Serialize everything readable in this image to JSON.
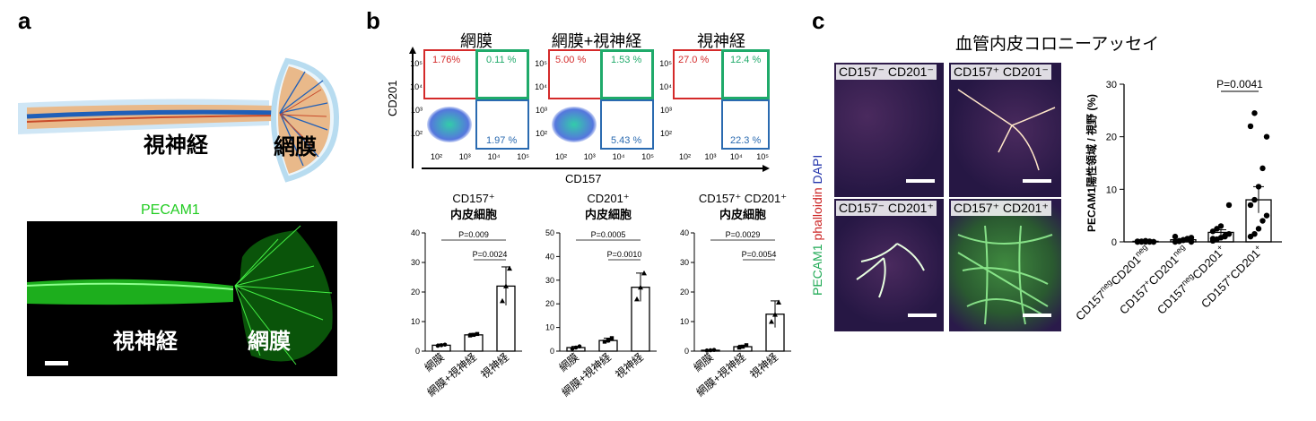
{
  "panels": {
    "a": {
      "letter": "a",
      "schematic_labels": {
        "optic_nerve": "視神経",
        "retina": "網膜"
      },
      "fluor_title": "PECAM1",
      "fluor_labels": {
        "optic_nerve": "視神経",
        "retina": "網膜"
      },
      "colors": {
        "vessel": "#1f5fb8",
        "tissue": "#e9b98a",
        "pecam": "#22cc22"
      }
    },
    "b": {
      "letter": "b",
      "y_axis_label": "CD201",
      "x_axis_label": "CD157",
      "flow": [
        {
          "title": "網膜",
          "q_ul": "1.76%",
          "q_ur": "0.11 %",
          "q_lr": "1.97 %"
        },
        {
          "title": "網膜+視神経",
          "q_ul": "5.00 %",
          "q_ur": "1.53 %",
          "q_lr": "5.43 %"
        },
        {
          "title": "視神経",
          "q_ul": "27.0 %",
          "q_ur": "12.4 %",
          "q_lr": "22.3 %"
        }
      ],
      "flow_ticks_y": [
        "10⁵",
        "10⁴",
        "10³",
        "10²"
      ],
      "flow_ticks_x": [
        "10²",
        "10³",
        "10⁴",
        "10⁵"
      ],
      "gate_colors": {
        "ul": "#d42a2a",
        "ur": "#1faa6a",
        "lr": "#2a6ab0"
      }
    },
    "c": {
      "letter": "c",
      "title": "血管内皮コロニーアッセイ",
      "micro_labels": [
        "CD157⁻ CD201⁻",
        "CD157⁺ CD201⁻",
        "CD157⁻ CD201⁺",
        "CD157⁺ CD201⁺"
      ],
      "stain_label": {
        "pecam": "PECAM1",
        "phalloidin": "phalloidin",
        "dapi": "DAPI"
      },
      "stain_colors": {
        "pecam": "#1faa55",
        "phalloidin": "#cc2222",
        "dapi": "#2233aa"
      }
    }
  },
  "chart_data": [
    {
      "type": "bar",
      "title": "CD157⁺\n内皮細胞",
      "title_lines": [
        "CD157⁺",
        "内皮細胞"
      ],
      "categories": [
        "網膜",
        "網膜+視神経",
        "視神経"
      ],
      "values": [
        2,
        5.5,
        22
      ],
      "errors": [
        0.4,
        0.5,
        6.5
      ],
      "points": [
        [
          1.8,
          2.0,
          2.2
        ],
        [
          5.3,
          5.5,
          5.8
        ],
        [
          17.0,
          22.0,
          28.0
        ]
      ],
      "ylim": [
        0,
        40
      ],
      "yticks": [
        "0",
        "10",
        "20",
        "30",
        "40"
      ],
      "pvalues": [
        {
          "label": "P=0.009",
          "from": 0,
          "to": 2
        },
        {
          "label": "P=0.0024",
          "from": 1,
          "to": 2
        }
      ]
    },
    {
      "type": "bar",
      "title": "CD201⁺\n内皮細胞",
      "title_lines": [
        "CD201⁺",
        "内皮細胞"
      ],
      "categories": [
        "網膜",
        "網膜+視神経",
        "視神経"
      ],
      "values": [
        1.5,
        4.5,
        27
      ],
      "errors": [
        0.5,
        1.0,
        6.0
      ],
      "points": [
        [
          1.0,
          1.5,
          2.0
        ],
        [
          4.0,
          4.5,
          5.5
        ],
        [
          22.0,
          27.0,
          33.0
        ]
      ],
      "ylim": [
        0,
        50
      ],
      "yticks": [
        "0",
        "10",
        "20",
        "30",
        "40",
        "50"
      ],
      "pvalues": [
        {
          "label": "P=0.0005",
          "from": 0,
          "to": 2
        },
        {
          "label": "P=0.0010",
          "from": 1,
          "to": 2
        }
      ]
    },
    {
      "type": "bar",
      "title": "CD157⁺ CD201⁺\n内皮細胞",
      "title_lines": [
        "CD157⁺ CD201⁺",
        "内皮細胞"
      ],
      "categories": [
        "網膜",
        "網膜+視神経",
        "視神経"
      ],
      "values": [
        0.3,
        1.5,
        12.5
      ],
      "errors": [
        0.1,
        0.5,
        4.5
      ],
      "points": [
        [
          0.2,
          0.3,
          0.4
        ],
        [
          1.2,
          1.5,
          2.0
        ],
        [
          10.0,
          12.4,
          16.5
        ]
      ],
      "ylim": [
        0,
        40
      ],
      "yticks": [
        "0",
        "10",
        "20",
        "30",
        "40"
      ],
      "pvalues": [
        {
          "label": "P=0.0029",
          "from": 0,
          "to": 2
        },
        {
          "label": "P=0.0054",
          "from": 1,
          "to": 2
        }
      ]
    },
    {
      "type": "scatter",
      "ylabel": "PECAM1陽性領域 / 視野 (%)",
      "categories": [
        "CD157negCD201neg",
        "CD157⁺CD201neg",
        "CD157negCD201⁺",
        "CD157⁺CD201⁺"
      ],
      "category_parts": [
        [
          "CD157",
          "neg",
          "CD201",
          "neg"
        ],
        [
          "CD157",
          "+",
          "CD201",
          "neg"
        ],
        [
          "CD157",
          "neg",
          "CD201",
          "+"
        ],
        [
          "CD157",
          "+",
          "CD201",
          "+"
        ]
      ],
      "means": [
        0.1,
        0.4,
        1.8,
        8.0
      ],
      "sem": [
        0.05,
        0.2,
        0.5,
        2.5
      ],
      "points": [
        [
          0,
          0,
          0,
          0,
          0,
          0.1,
          0.1,
          0.2,
          0.1,
          0,
          0
        ],
        [
          0,
          0.1,
          0.3,
          0.5,
          0.8,
          1.0,
          0.2,
          0.4,
          0.6,
          0
        ],
        [
          0.2,
          0.5,
          0.8,
          1.0,
          1.5,
          2.0,
          2.5,
          3.0,
          1.2,
          7.0,
          0.6
        ],
        [
          1.0,
          1.5,
          2.5,
          4.0,
          5.0,
          7.0,
          8.0,
          10.5,
          14.0,
          20.0,
          22.0,
          24.5
        ]
      ],
      "ylim": [
        0,
        30
      ],
      "yticks": [
        "0",
        "10",
        "20",
        "30"
      ],
      "pvalue": {
        "label": "P=0.0041",
        "from": 2,
        "to": 3
      }
    }
  ]
}
